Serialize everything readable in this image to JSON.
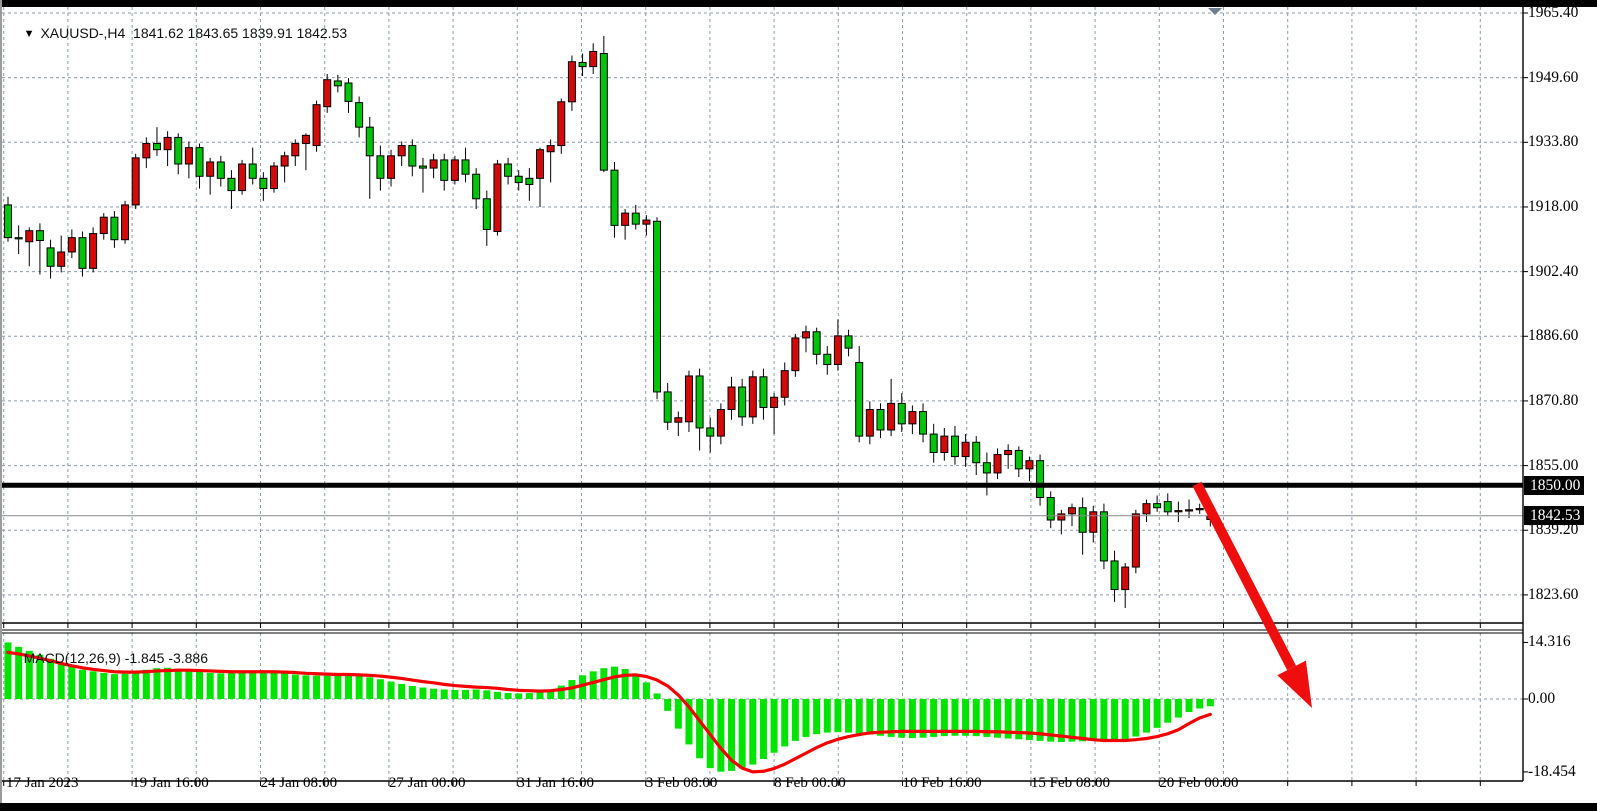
{
  "window": {
    "symbol_period": "XAUUSD-,H4",
    "ohlc": {
      "open": "1841.62",
      "high": "1843.65",
      "low": "1839.91",
      "close": "1842.53"
    }
  },
  "macd_panel_label": {
    "name": "MACD(12,26,9)",
    "macd_value": "-1.845",
    "signal_value": "-3.886"
  },
  "colors": {
    "background": "#ffffff",
    "bull_candle": "#d20a0a",
    "bear_candle": "#00c40a",
    "candle_border": "#000000",
    "macd_histogram": "#00e400",
    "macd_signal_line": "#f50000",
    "grid": "#8d9cab",
    "resistance_line": "#000000",
    "bid_line": "#8a8a8a",
    "annotation_arrow": "#ee0e0e",
    "badge_bg": "#000000",
    "badge_fg": "#ffffff",
    "shift_marker": "#6e7f90"
  },
  "price_axis": {
    "labels": [
      "1965.40",
      "1949.60",
      "1933.80",
      "1918.00",
      "1902.40",
      "1886.60",
      "1870.80",
      "1855.00",
      "1839.20",
      "1823.60"
    ],
    "badges": [
      {
        "text": "1850.00",
        "price": 1850.0
      },
      {
        "text": "1842.53",
        "price": 1842.53
      }
    ]
  },
  "macd_axis": {
    "labels": [
      {
        "text": "14.316",
        "value": 14.316
      },
      {
        "text": "0.00",
        "value": 0.0
      },
      {
        "text": "-18.454",
        "value": -18.454
      }
    ]
  },
  "time_axis": {
    "labels": [
      "17 Jan 2023",
      "19 Jan 16:00",
      "24 Jan 08:00",
      "27 Jan 00:00",
      "31 Jan 16:00",
      "3 Feb 08:00",
      "8 Feb 00:00",
      "10 Feb 16:00",
      "15 Feb 08:00",
      "20 Feb 00:00"
    ]
  },
  "chart_data": {
    "type": "candlestick_with_macd",
    "symbol": "XAUUSD",
    "timeframe": "H4",
    "price_grid": [
      1965.4,
      1949.6,
      1933.8,
      1918.0,
      1902.4,
      1886.6,
      1870.8,
      1855.0,
      1839.2,
      1823.6
    ],
    "resistance_level": 1850.0,
    "current_bid": 1842.53,
    "annotation": "thick red arrow pointing down-right from the 1850.00 level, signalling expected decline",
    "candles_ohlc": [
      [
        1918.5,
        1920.5,
        1909.5,
        1910.5
      ],
      [
        1910.5,
        1913.5,
        1906.5,
        1910.2
      ],
      [
        1909.5,
        1913.0,
        1903.5,
        1912.2
      ],
      [
        1912.2,
        1914.0,
        1901.5,
        1909.8
      ],
      [
        1908.0,
        1910.0,
        1900.5,
        1903.5
      ],
      [
        1903.5,
        1911.0,
        1902.0,
        1907.0
      ],
      [
        1907.0,
        1912.5,
        1905.5,
        1910.5
      ],
      [
        1910.5,
        1912.0,
        1901.0,
        1903.0
      ],
      [
        1903.0,
        1913.0,
        1902.0,
        1911.5
      ],
      [
        1911.5,
        1916.5,
        1910.0,
        1915.5
      ],
      [
        1915.5,
        1917.0,
        1908.0,
        1910.0
      ],
      [
        1910.0,
        1919.5,
        1909.0,
        1918.5
      ],
      [
        1918.5,
        1931.0,
        1917.5,
        1930.0
      ],
      [
        1930.0,
        1935.0,
        1927.5,
        1933.5
      ],
      [
        1933.5,
        1937.5,
        1930.5,
        1932.0
      ],
      [
        1932.0,
        1936.5,
        1928.0,
        1935.0
      ],
      [
        1935.0,
        1936.0,
        1926.0,
        1928.5
      ],
      [
        1928.5,
        1934.0,
        1925.0,
        1932.5
      ],
      [
        1932.5,
        1933.5,
        1922.5,
        1925.5
      ],
      [
        1925.5,
        1930.0,
        1921.0,
        1929.0
      ],
      [
        1929.0,
        1930.5,
        1923.0,
        1925.0
      ],
      [
        1925.0,
        1927.0,
        1917.5,
        1922.0
      ],
      [
        1922.0,
        1929.5,
        1921.0,
        1928.5
      ],
      [
        1928.5,
        1932.5,
        1923.5,
        1925.0
      ],
      [
        1925.0,
        1926.5,
        1919.5,
        1922.5
      ],
      [
        1922.5,
        1929.0,
        1921.5,
        1928.0
      ],
      [
        1928.0,
        1931.5,
        1924.0,
        1930.5
      ],
      [
        1930.5,
        1934.5,
        1928.0,
        1933.5
      ],
      [
        1933.5,
        1936.0,
        1927.0,
        1935.5
      ],
      [
        1933.0,
        1944.0,
        1931.5,
        1943.0
      ],
      [
        1942.5,
        1950.5,
        1941.0,
        1949.1
      ],
      [
        1948.8,
        1950.3,
        1946.0,
        1947.6
      ],
      [
        1948.3,
        1949.5,
        1941.0,
        1943.8
      ],
      [
        1943.5,
        1945.0,
        1935.0,
        1937.5
      ],
      [
        1937.5,
        1940.0,
        1920.0,
        1930.5
      ],
      [
        1930.5,
        1933.0,
        1922.0,
        1925.0
      ],
      [
        1925.0,
        1932.0,
        1923.0,
        1930.5
      ],
      [
        1930.5,
        1934.0,
        1928.0,
        1933.0
      ],
      [
        1933.0,
        1934.5,
        1925.5,
        1928.0
      ],
      [
        1928.0,
        1930.0,
        1921.5,
        1927.5
      ],
      [
        1927.5,
        1931.0,
        1925.0,
        1929.5
      ],
      [
        1929.5,
        1931.0,
        1922.0,
        1924.5
      ],
      [
        1924.5,
        1930.5,
        1923.5,
        1929.5
      ],
      [
        1929.5,
        1932.5,
        1924.0,
        1926.0
      ],
      [
        1926.0,
        1927.5,
        1917.5,
        1920.0
      ],
      [
        1920.0,
        1922.0,
        1908.5,
        1912.5
      ],
      [
        1912.0,
        1929.5,
        1911.0,
        1928.5
      ],
      [
        1928.5,
        1930.0,
        1923.5,
        1925.5
      ],
      [
        1925.5,
        1927.0,
        1922.0,
        1924.0
      ],
      [
        1925.0,
        1927.5,
        1919.5,
        1923.5
      ],
      [
        1925.0,
        1932.5,
        1918.0,
        1932.0
      ],
      [
        1931.5,
        1934.5,
        1924.0,
        1933.0
      ],
      [
        1933.0,
        1944.5,
        1931.0,
        1943.7
      ],
      [
        1943.7,
        1955.0,
        1941.5,
        1953.5
      ],
      [
        1953.3,
        1955.5,
        1950.0,
        1952.3
      ],
      [
        1952.3,
        1958.0,
        1950.5,
        1956.0
      ],
      [
        1955.5,
        1959.8,
        1926.5,
        1927.0
      ],
      [
        1927.0,
        1929.0,
        1910.5,
        1913.5
      ],
      [
        1913.5,
        1917.5,
        1910.0,
        1916.5
      ],
      [
        1916.5,
        1918.5,
        1912.5,
        1913.8
      ],
      [
        1913.8,
        1916.0,
        1911.0,
        1914.8
      ],
      [
        1914.5,
        1915.5,
        1871.0,
        1872.8
      ],
      [
        1872.8,
        1875.0,
        1863.5,
        1865.4
      ],
      [
        1865.4,
        1868.0,
        1862.0,
        1866.5
      ],
      [
        1865.5,
        1878.0,
        1863.0,
        1876.7
      ],
      [
        1876.7,
        1878.5,
        1858.5,
        1864.0
      ],
      [
        1864.0,
        1866.5,
        1858.0,
        1862.0
      ],
      [
        1862.0,
        1870.0,
        1860.0,
        1868.5
      ],
      [
        1868.5,
        1876.5,
        1866.0,
        1874.0
      ],
      [
        1874.0,
        1876.0,
        1864.5,
        1866.7
      ],
      [
        1866.7,
        1878.0,
        1865.0,
        1876.5
      ],
      [
        1876.5,
        1878.5,
        1866.0,
        1869.0
      ],
      [
        1869.0,
        1872.5,
        1862.5,
        1871.5
      ],
      [
        1871.5,
        1880.0,
        1869.5,
        1878.0
      ],
      [
        1878.0,
        1887.0,
        1876.5,
        1886.0
      ],
      [
        1886.0,
        1889.0,
        1882.5,
        1887.5
      ],
      [
        1887.5,
        1888.5,
        1879.5,
        1882.0
      ],
      [
        1882.0,
        1884.0,
        1877.0,
        1879.5
      ],
      [
        1879.5,
        1890.5,
        1878.0,
        1886.5
      ],
      [
        1886.5,
        1888.0,
        1881.5,
        1883.5
      ],
      [
        1880.0,
        1884.0,
        1860.5,
        1862.0
      ],
      [
        1862.0,
        1870.5,
        1860.0,
        1868.5
      ],
      [
        1868.5,
        1870.0,
        1861.5,
        1863.5
      ],
      [
        1863.5,
        1876.0,
        1862.0,
        1870.0
      ],
      [
        1870.0,
        1872.5,
        1863.0,
        1865.0
      ],
      [
        1865.0,
        1869.5,
        1862.5,
        1868.0
      ],
      [
        1868.0,
        1870.0,
        1860.5,
        1862.5
      ],
      [
        1862.5,
        1865.0,
        1855.5,
        1858.0
      ],
      [
        1858.0,
        1864.0,
        1856.0,
        1862.0
      ],
      [
        1862.0,
        1864.5,
        1855.0,
        1857.0
      ],
      [
        1857.0,
        1862.5,
        1854.5,
        1860.5
      ],
      [
        1860.5,
        1862.0,
        1852.5,
        1855.5
      ],
      [
        1855.5,
        1858.0,
        1847.5,
        1853.0
      ],
      [
        1853.0,
        1859.0,
        1851.5,
        1857.5
      ],
      [
        1857.5,
        1860.0,
        1854.0,
        1858.5
      ],
      [
        1858.5,
        1859.5,
        1852.0,
        1854.0
      ],
      [
        1854.0,
        1857.0,
        1851.0,
        1856.0
      ],
      [
        1856.0,
        1857.5,
        1845.0,
        1847.0
      ],
      [
        1847.0,
        1848.5,
        1839.5,
        1841.5
      ],
      [
        1841.5,
        1844.0,
        1838.0,
        1843.0
      ],
      [
        1843.0,
        1845.5,
        1840.0,
        1844.5
      ],
      [
        1844.5,
        1847.0,
        1833.0,
        1838.5
      ],
      [
        1838.5,
        1845.0,
        1836.0,
        1843.5
      ],
      [
        1843.5,
        1845.5,
        1829.5,
        1831.5
      ],
      [
        1831.5,
        1834.0,
        1821.5,
        1824.5
      ],
      [
        1824.5,
        1831.0,
        1820.0,
        1830.0
      ],
      [
        1830.0,
        1844.0,
        1828.5,
        1843.0
      ],
      [
        1843.0,
        1846.5,
        1841.0,
        1845.5
      ],
      [
        1845.5,
        1847.5,
        1843.5,
        1844.5
      ],
      [
        1846.0,
        1848.0,
        1842.5,
        1843.5
      ],
      [
        1843.5,
        1846.0,
        1841.0,
        1843.8
      ],
      [
        1843.8,
        1846.5,
        1842.0,
        1844.0
      ],
      [
        1844.0,
        1845.5,
        1843.0,
        1844.3
      ],
      [
        1841.62,
        1843.65,
        1839.91,
        1842.53
      ]
    ],
    "macd": {
      "parameters": "12,26,9",
      "macd_current": -1.845,
      "signal_current": -3.886,
      "range": [
        -18.454,
        14.316
      ],
      "histogram": [
        14.316,
        13.2,
        12.2,
        11.2,
        10.2,
        9.2,
        8.2,
        7.4,
        7.0,
        6.6,
        6.3,
        6.4,
        6.9,
        7.4,
        7.8,
        7.9,
        7.7,
        7.3,
        6.9,
        6.6,
        6.5,
        6.6,
        6.8,
        7.0,
        7.0,
        6.8,
        6.5,
        6.2,
        6.0,
        5.9,
        5.9,
        6.0,
        6.0,
        5.8,
        5.5,
        5.0,
        4.4,
        3.8,
        3.3,
        2.9,
        2.6,
        2.4,
        2.3,
        2.3,
        2.4,
        2.2,
        1.8,
        1.5,
        1.4,
        1.5,
        1.8,
        2.4,
        3.4,
        4.8,
        6.0,
        7.0,
        7.8,
        8.2,
        7.6,
        6.4,
        4.2,
        1.4,
        -3.0,
        -7.5,
        -11.5,
        -15.0,
        -17.5,
        -18.4,
        -18.2,
        -17.6,
        -16.6,
        -15.2,
        -13.6,
        -12.0,
        -10.6,
        -9.6,
        -8.9,
        -8.5,
        -8.4,
        -8.5,
        -8.7,
        -9.0,
        -9.3,
        -9.6,
        -9.8,
        -9.9,
        -9.8,
        -9.6,
        -9.4,
        -9.3,
        -9.3,
        -9.4,
        -9.6,
        -9.8,
        -10.0,
        -10.2,
        -10.4,
        -10.6,
        -10.8,
        -10.9,
        -10.8,
        -10.7,
        -10.5,
        -10.4,
        -10.4,
        -10.1,
        -9.5,
        -8.5,
        -7.3,
        -6.0,
        -4.7,
        -3.3,
        -2.4,
        -1.845
      ],
      "signal_line": [
        11.8,
        11.4,
        10.9,
        10.3,
        9.7,
        9.0,
        8.4,
        7.9,
        7.5,
        7.2,
        6.9,
        6.8,
        6.8,
        6.9,
        7.1,
        7.2,
        7.3,
        7.3,
        7.2,
        7.1,
        7.0,
        6.9,
        6.9,
        6.9,
        6.9,
        6.9,
        6.8,
        6.7,
        6.5,
        6.4,
        6.3,
        6.2,
        6.2,
        6.1,
        6.0,
        5.8,
        5.5,
        5.2,
        4.8,
        4.4,
        4.1,
        3.7,
        3.4,
        3.2,
        3.0,
        2.9,
        2.7,
        2.4,
        2.2,
        2.1,
        2.0,
        2.1,
        2.4,
        2.8,
        3.5,
        4.2,
        4.9,
        5.6,
        6.0,
        6.1,
        5.7,
        4.8,
        3.3,
        1.0,
        -2.0,
        -5.5,
        -9.0,
        -12.5,
        -15.5,
        -17.5,
        -18.45,
        -18.3,
        -17.6,
        -16.5,
        -15.1,
        -13.7,
        -12.3,
        -11.1,
        -10.2,
        -9.5,
        -9.0,
        -8.6,
        -8.4,
        -8.3,
        -8.2,
        -8.2,
        -8.2,
        -8.2,
        -8.2,
        -8.2,
        -8.2,
        -8.2,
        -8.3,
        -8.3,
        -8.4,
        -8.5,
        -8.6,
        -8.8,
        -9.1,
        -9.4,
        -9.7,
        -10.0,
        -10.3,
        -10.5,
        -10.5,
        -10.5,
        -10.3,
        -10.0,
        -9.5,
        -8.8,
        -7.8,
        -6.2,
        -4.8,
        -3.886
      ]
    }
  }
}
